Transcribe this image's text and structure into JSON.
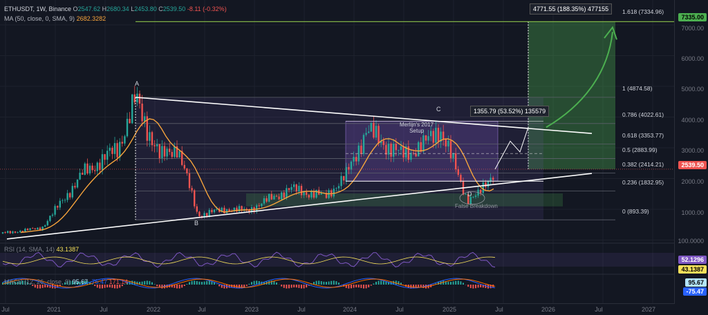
{
  "legend": {
    "symbol": "ETHUSDT, 1W, Binance",
    "open_label": "O",
    "open": "2547.62",
    "high_label": "H",
    "high": "2680.34",
    "low_label": "L",
    "low": "2453.80",
    "close_label": "C",
    "close": "2539.50",
    "change": "-8.11 (-0.32%)",
    "ma_label": "MA (50, close, 0, SMA, 9)",
    "ma_value": "2682.3282"
  },
  "price_axis": [
    "7000.00",
    "6000.00",
    "5000.00",
    "4000.00",
    "3000.00",
    "2000.00",
    "1000.00",
    "100.0000"
  ],
  "time_axis": [
    "Jul",
    "2021",
    "Jul",
    "2022",
    "Jul",
    "2023",
    "Jul",
    "2024",
    "Jul",
    "2025",
    "Jul",
    "2026",
    "Jul",
    "2027"
  ],
  "badges": {
    "target": "7335.00",
    "last_price": "2539.50",
    "rsi": "52.1296",
    "rsi_ma": "43.1387",
    "macd_a": "95.67",
    "macd_b": "-75.47"
  },
  "fib_levels": [
    {
      "label": "1.618 (7334.96)",
      "price": 7335
    },
    {
      "label": "1 (4874.58)",
      "price": 4874.58
    },
    {
      "label": "0.786 (4022.61)",
      "price": 4022.61
    },
    {
      "label": "0.618 (3353.77)",
      "price": 3353.77
    },
    {
      "label": "0.5 (2883.99)",
      "price": 2883.99
    },
    {
      "label": "0.382 (2414.21)",
      "price": 2414.21
    },
    {
      "label": "0.236 (1832.95)",
      "price": 1832.95
    },
    {
      "label": "0 (893.39)",
      "price": 893.39
    }
  ],
  "annotations": {
    "point_a": "A",
    "point_b": "B",
    "point_c": "C",
    "point_d": "D",
    "setup_line1": "Merlijn's 2017",
    "setup_line2": "Setup",
    "false_breakdown": "False Breakdown",
    "measure_top": "4771.55 (188.35%) 477155",
    "measure_mid": "1355.79 (53.52%) 135579"
  },
  "rsi_legend": {
    "label": "RSI (14, SMA, 14)",
    "value": "43.1387"
  },
  "macd_legend": {
    "label": "MACD (12, 26, close, 9)",
    "v1": "95.67",
    "v2": "-75.47",
    "v3": "171.14"
  },
  "colors": {
    "background": "#131722",
    "up": "#26a69a",
    "down": "#ef5350",
    "ma": "#f7a43c",
    "rsi": "#7e57c2",
    "target_badge": "#4caf50",
    "target_line": "#8bc34a"
  }
}
